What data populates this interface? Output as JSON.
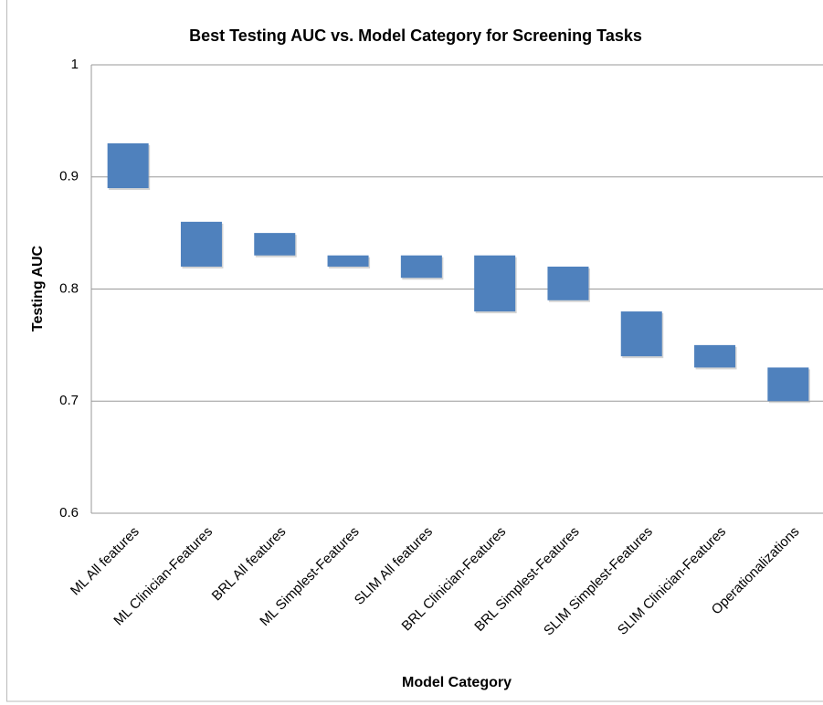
{
  "chart_data": {
    "type": "range_bar",
    "title": "Best Testing AUC vs. Model Category for Screening Tasks",
    "x_label": "Model Category",
    "y_label": "Testing AUC",
    "categories": [
      "ML All features",
      "ML Clinician-Features",
      "BRL All features",
      "ML Simplest-Features",
      "SLIM All features",
      "BRL Clinician-Features",
      "BRL Simplest-Features",
      "SLIM Simplest-Features",
      "SLIM Clinician-Features",
      "Operationalizations"
    ],
    "lows": [
      0.89,
      0.82,
      0.83,
      0.82,
      0.81,
      0.78,
      0.79,
      0.74,
      0.73,
      0.7
    ],
    "highs": [
      0.93,
      0.86,
      0.85,
      0.83,
      0.83,
      0.83,
      0.82,
      0.78,
      0.75,
      0.73
    ],
    "color": "#4f81bd",
    "ylim": [
      0.6,
      1
    ],
    "yticks": [
      0.6,
      0.7,
      0.8,
      0.9,
      1
    ],
    "grid": true
  }
}
